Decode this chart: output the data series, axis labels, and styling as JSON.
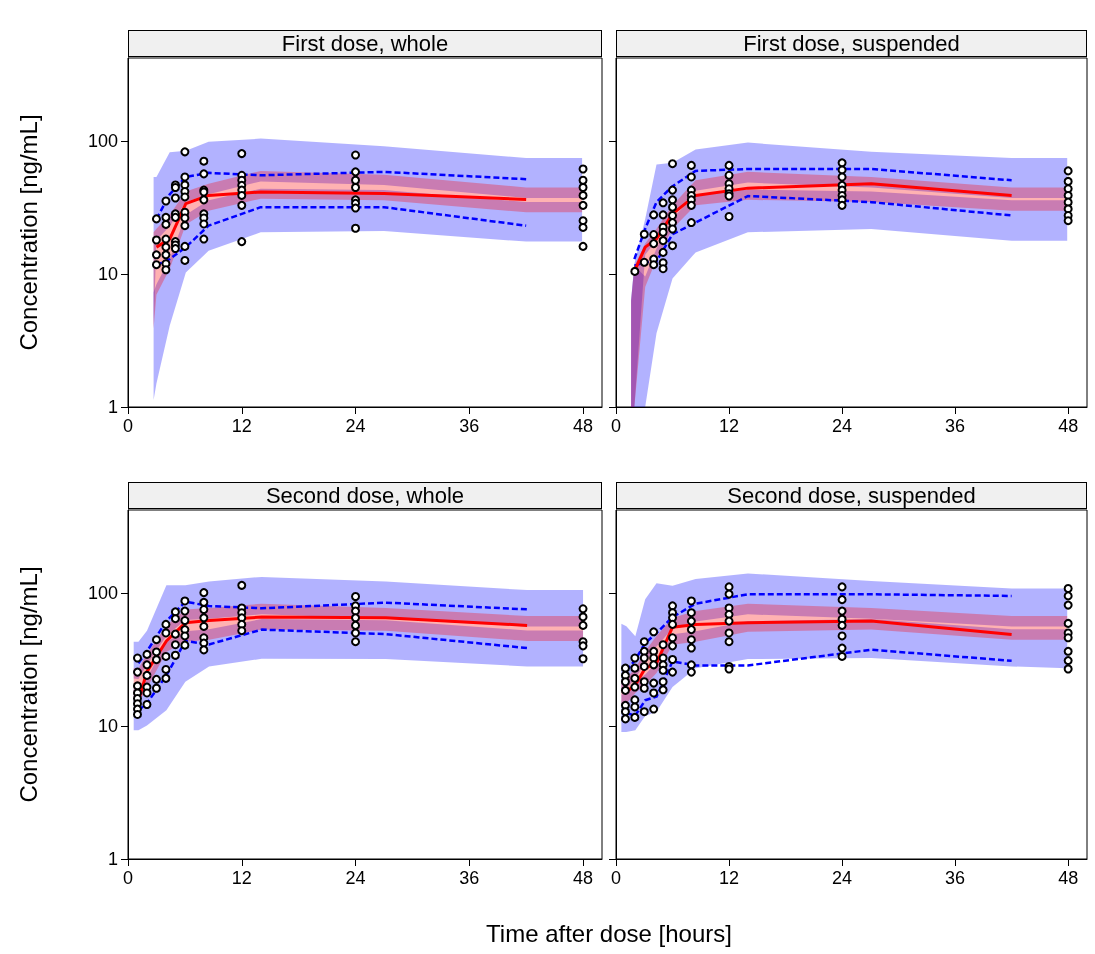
{
  "chart_data": [
    {
      "type": "line",
      "title": "First dose, whole",
      "ylabel": "Concentration [ng/mL]",
      "xlim": [
        0,
        50
      ],
      "xticks": [
        0,
        12,
        24,
        36,
        48
      ],
      "ylim": [
        1,
        425
      ],
      "yticks": [
        1,
        10,
        100
      ],
      "log": "y",
      "grid": false,
      "series": [
        {
          "color": "#0000ff",
          "line_style": "dashed",
          "marker": "none",
          "x": [
            2.7,
            3,
            4.4,
            6.1,
            8.5,
            14,
            27,
            42,
            47.9
          ],
          "values": [
            null,
            11.7,
            13,
            16,
            23.2,
            32,
            32,
            23.2,
            null
          ],
          "lower": [
            1.13,
            1.5,
            4.1,
            10.3,
            15,
            20.7,
            21.2,
            17.6,
            17.6
          ],
          "upper": [
            7.3,
            8.4,
            13,
            28,
            36,
            44,
            43,
            35,
            35
          ]
        },
        {
          "color": "#0000ff",
          "line_style": "dashed",
          "marker": "none",
          "x": [
            2.7,
            3,
            4.4,
            6.1,
            8.5,
            14,
            27,
            42,
            47.9
          ],
          "values": [
            null,
            26,
            40,
            54,
            58,
            55.6,
            59,
            52,
            null
          ],
          "lower": [
            3.9,
            18,
            23,
            35,
            40,
            50,
            47,
            37.5,
            37.5
          ],
          "upper": [
            54,
            54,
            83,
            85,
            99.5,
            105,
            92,
            75,
            75
          ]
        },
        {
          "color": "#ff0000",
          "line_style": "solid",
          "marker": "none",
          "x": [
            2.7,
            3,
            4.4,
            6.1,
            8.5,
            14,
            27,
            42,
            47.9
          ],
          "values": [
            null,
            16,
            18.4,
            34,
            39.2,
            41.6,
            40.5,
            36.6,
            null
          ],
          "lower": [
            3.9,
            7,
            11,
            23.7,
            30,
            37,
            36,
            29.3,
            29.3
          ],
          "upper": [
            20.7,
            22,
            28,
            42,
            48,
            60,
            56,
            45,
            45
          ]
        },
        {
          "type": "scatter",
          "color": "#000000",
          "marker": "circle",
          "x": [
            3,
            3,
            3,
            3,
            4,
            4,
            4,
            4,
            4,
            4,
            4,
            4,
            5,
            5,
            5,
            5,
            5,
            5,
            5,
            5,
            6,
            6,
            6,
            6,
            6,
            6,
            6,
            6,
            6,
            6,
            8,
            8,
            8,
            8,
            8,
            8,
            8,
            8,
            8,
            12,
            12,
            12,
            12,
            12,
            12,
            12,
            12,
            24,
            24,
            24,
            24,
            24,
            24,
            24,
            24,
            48,
            48,
            48,
            48,
            48,
            48,
            48,
            48
          ],
          "values": [
            26.1,
            18.1,
            14,
            11.8,
            35.6,
            26.8,
            23.7,
            18.4,
            16,
            14,
            12,
            10.8,
            47,
            45,
            37.5,
            28.5,
            26.8,
            17.6,
            16.6,
            15.6,
            83.5,
            54,
            47,
            42,
            38.2,
            29.3,
            26.5,
            23.2,
            16.2,
            12.7,
            71,
            57,
            43,
            41.6,
            36.3,
            28.5,
            26.5,
            23.9,
            18.4,
            81,
            55.6,
            51,
            46.7,
            43,
            39.2,
            33,
            17.6,
            79,
            59,
            51,
            45,
            36.3,
            34.2,
            31.5,
            22.2,
            62,
            51,
            45,
            39.2,
            33,
            25.3,
            22.5,
            16.2
          ]
        }
      ]
    },
    {
      "type": "line",
      "title": "First dose, suspended",
      "xlim": [
        0,
        50
      ],
      "xticks": [
        0,
        12,
        24,
        36,
        48
      ],
      "ylim": [
        1,
        425
      ],
      "yticks": [
        1,
        10,
        100
      ],
      "log": "y",
      "grid": false,
      "tick_labels": "x",
      "series": [
        {
          "color": "#0000ff",
          "line_style": "dashed",
          "marker": "none",
          "x": [
            1.6,
            1.95,
            3.1,
            4.3,
            6,
            8.45,
            14,
            27.1,
            42,
            47.9
          ],
          "values": [
            null,
            11.6,
            12.3,
            12.5,
            20,
            24.5,
            38.8,
            34.9,
            27.7,
            null
          ],
          "lower": [
            1,
            1,
            1,
            3.6,
            9.3,
            14.6,
            20.7,
            21.9,
            17.9,
            17.9
          ],
          "upper": [
            6.3,
            11.6,
            9.6,
            15.6,
            26.4,
            40,
            43.5,
            42,
            36,
            36
          ]
        },
        {
          "color": "#0000ff",
          "line_style": "dashed",
          "marker": "none",
          "x": [
            1.6,
            1.95,
            3.1,
            4.3,
            6,
            8.45,
            14,
            27.1,
            42,
            47.9
          ],
          "values": [
            null,
            13,
            22,
            35,
            46,
            60,
            62,
            62,
            51,
            null
          ],
          "lower": [
            1,
            1,
            14,
            18,
            27.5,
            42.5,
            49,
            45,
            37.5,
            37.5
          ],
          "upper": [
            6.4,
            12,
            26,
            67,
            69,
            87,
            98,
            83.5,
            75,
            75
          ]
        },
        {
          "color": "#ff0000",
          "line_style": "solid",
          "marker": "none",
          "x": [
            1.6,
            1.95,
            3.1,
            4.3,
            6,
            8.45,
            14,
            27.1,
            42,
            47.9
          ],
          "values": [
            null,
            10.5,
            16,
            18.4,
            28.5,
            39.2,
            44.5,
            48,
            39.2,
            null
          ],
          "lower": [
            1,
            1,
            8,
            13,
            22,
            33,
            36.3,
            35,
            30,
            30
          ],
          "upper": [
            6.3,
            11.6,
            17,
            22,
            33,
            51,
            59,
            54,
            45,
            45
          ]
        },
        {
          "type": "scatter",
          "color": "#000000",
          "marker": "circle",
          "x": [
            2,
            3,
            3,
            4,
            4,
            4,
            4,
            4,
            5,
            5,
            5,
            5,
            5,
            5,
            5,
            5,
            6,
            6,
            6,
            6,
            6,
            6,
            6,
            6,
            8,
            8,
            8,
            8,
            8,
            8,
            8,
            12,
            12,
            12,
            12,
            12,
            12,
            12,
            24,
            24,
            24,
            24,
            24,
            24,
            24,
            24,
            48,
            48,
            48,
            48,
            48,
            48,
            48,
            48
          ],
          "values": [
            10.5,
            20,
            12.3,
            28,
            19.9,
            17,
            13,
            11.8,
            34.5,
            28,
            22.6,
            20.7,
            17.9,
            14.6,
            12.2,
            11,
            68,
            43,
            36.3,
            32,
            27.7,
            24.5,
            21.9,
            16.4,
            66,
            54,
            43,
            39.2,
            36.3,
            33,
            24.5,
            66,
            55.6,
            48,
            44,
            40.4,
            38.8,
            27.2,
            69,
            61,
            54,
            46.7,
            43,
            39.2,
            36.3,
            33,
            60,
            50,
            44,
            39.2,
            34.9,
            31,
            27.7,
            25.3
          ]
        }
      ]
    },
    {
      "type": "line",
      "title": "Second dose, whole",
      "ylabel": "Concentration [ng/mL]",
      "xlabel": "Time after dose [hours]",
      "xlim": [
        0,
        50
      ],
      "xticks": [
        0,
        12,
        24,
        36,
        48
      ],
      "ylim": [
        1,
        420
      ],
      "yticks": [
        1,
        10,
        100
      ],
      "log": "y",
      "grid": false,
      "series": [
        {
          "color": "#0000ff",
          "line_style": "dashed",
          "marker": "none",
          "x": [
            0.6,
            1.1,
            2,
            4.05,
            6.05,
            8.55,
            14.1,
            27.2,
            42.1,
            48
          ],
          "values": [
            null,
            13.1,
            14.8,
            24,
            43.5,
            41,
            53,
            49,
            38.5,
            null
          ],
          "lower": [
            9.3,
            9.3,
            10.1,
            13.1,
            21.5,
            28,
            32,
            31.8,
            28,
            28
          ],
          "upper": [
            19.3,
            18,
            23,
            43,
            51.6,
            53.4,
            63.6,
            62.4,
            52.2,
            52.2
          ]
        },
        {
          "color": "#0000ff",
          "line_style": "dashed",
          "marker": "none",
          "x": [
            0.6,
            1.1,
            2,
            4.05,
            6.05,
            8.55,
            14.1,
            27.2,
            42.1,
            48
          ],
          "values": [
            null,
            29.6,
            36.4,
            61.4,
            86,
            79.7,
            76.6,
            84.5,
            75.2,
            null
          ],
          "lower": [
            22.7,
            22.5,
            28.8,
            47.5,
            62.5,
            64,
            69,
            64,
            56,
            56
          ],
          "upper": [
            43,
            43,
            52,
            114,
            114,
            122,
            132,
            122,
            105,
            105
          ]
        },
        {
          "color": "#ff0000",
          "line_style": "solid",
          "marker": "none",
          "x": [
            0.6,
            1.1,
            2,
            4.05,
            6.05,
            8.55,
            14.1,
            27.2,
            42.1,
            48
          ],
          "values": [
            null,
            15.5,
            25.6,
            43.5,
            59.6,
            62,
            65.8,
            65,
            57,
            null
          ],
          "lower": [
            16.1,
            15,
            19.2,
            36,
            43,
            44.5,
            53,
            52,
            43.5,
            43.5
          ],
          "upper": [
            27.2,
            27,
            34.6,
            57,
            75,
            77,
            83,
            77,
            67,
            67
          ]
        },
        {
          "type": "scatter",
          "color": "#000000",
          "marker": "circle",
          "x": [
            1,
            1,
            1,
            1,
            1,
            1,
            1,
            1,
            2,
            2,
            2,
            2,
            2,
            2,
            3,
            3,
            3,
            3,
            3,
            4,
            4,
            4,
            4,
            4,
            5,
            5,
            5,
            5,
            5,
            6,
            6,
            6,
            6,
            6,
            6,
            8,
            8,
            8,
            8,
            8,
            8,
            8,
            8,
            12,
            12,
            12,
            12,
            12,
            12,
            24,
            24,
            24,
            24,
            24,
            24,
            24,
            48,
            48,
            48,
            48,
            48,
            48
          ],
          "values": [
            32.4,
            25.4,
            20,
            17.7,
            16.1,
            14.7,
            13.4,
            12.2,
            34.5,
            28.8,
            24,
            19.6,
            17.7,
            14.5,
            44.5,
            36,
            31.5,
            22.4,
            19.2,
            58,
            50,
            33.3,
            26.6,
            22.8,
            72,
            64,
            49,
            40.8,
            34,
            87,
            73,
            62,
            53,
            47.5,
            40.5,
            100.5,
            85,
            75,
            65,
            56,
            46,
            42,
            37.3,
            114,
            77,
            71,
            65,
            58,
            52,
            94,
            80,
            73,
            65,
            57,
            50,
            43,
            76,
            66,
            57,
            43,
            40,
            32
          ]
        }
      ]
    },
    {
      "type": "line",
      "title": "Second dose, suspended",
      "xlim": [
        0,
        50
      ],
      "xticks": [
        0,
        12,
        24,
        36,
        48
      ],
      "ylim": [
        1,
        420
      ],
      "yticks": [
        1,
        10,
        100
      ],
      "log": "y",
      "grid": false,
      "tick_labels": "x",
      "series": [
        {
          "color": "#0000ff",
          "line_style": "dashed",
          "marker": "none",
          "x": [
            0.57,
            1.1,
            2.05,
            3.1,
            4.3,
            6,
            8.45,
            14,
            27.1,
            42,
            47.9
          ],
          "values": [
            null,
            12.5,
            12,
            15.6,
            16.6,
            30.5,
            28.5,
            28.5,
            37.4,
            30.9,
            null
          ],
          "lower": [
            9,
            9,
            9.3,
            11.9,
            12.8,
            19.6,
            27.2,
            31.8,
            32.4,
            28,
            27.2
          ],
          "upper": [
            17.2,
            17.6,
            21.2,
            24.4,
            30,
            49,
            51.6,
            61.2,
            63.6,
            53.4,
            53.4
          ]
        },
        {
          "color": "#0000ff",
          "line_style": "dashed",
          "marker": "none",
          "x": [
            0.57,
            1.1,
            2.05,
            3.1,
            4.3,
            6,
            8.45,
            14,
            27.1,
            42,
            47.9
          ],
          "values": [
            null,
            26,
            31.4,
            42,
            50,
            65.8,
            83,
            97.7,
            97.7,
            94.9,
            null
          ],
          "lower": [
            18.5,
            19,
            22.7,
            30.3,
            39.6,
            54,
            61,
            69,
            64,
            56,
            56
          ],
          "upper": [
            58.6,
            56.2,
            47.2,
            89.6,
            118,
            113,
            127,
            140,
            123,
            108,
            108
          ]
        },
        {
          "color": "#ff0000",
          "line_style": "solid",
          "marker": "none",
          "x": [
            0.57,
            1.1,
            2.05,
            3.1,
            4.3,
            6,
            8.45,
            14,
            27.1,
            42,
            47.9
          ],
          "values": [
            null,
            18.1,
            20.3,
            27.2,
            29.6,
            55.3,
            58,
            59.6,
            61.4,
            48.7,
            null
          ],
          "lower": [
            14.3,
            14.7,
            17.7,
            20.3,
            25,
            40.8,
            43,
            51,
            53,
            44.5,
            44.5
          ],
          "upper": [
            22.2,
            22.8,
            27.2,
            36.4,
            47.5,
            65,
            73,
            83,
            77,
            67,
            67
          ]
        },
        {
          "type": "scatter",
          "color": "#000000",
          "marker": "circle",
          "x": [
            1,
            1,
            1,
            1,
            1,
            1,
            1,
            2,
            2,
            2,
            2,
            2,
            2,
            2,
            3,
            3,
            3,
            3,
            3,
            3,
            3,
            4,
            4,
            4,
            4,
            4,
            4,
            4,
            5,
            5,
            5,
            5,
            5,
            5,
            6,
            6,
            6,
            6,
            6,
            6,
            6,
            6,
            8,
            8,
            8,
            8,
            8,
            8,
            8,
            8,
            12,
            12,
            12,
            12,
            12,
            12,
            12,
            12,
            12,
            24,
            24,
            24,
            24,
            24,
            24,
            24,
            24,
            48,
            48,
            48,
            48,
            48,
            48,
            48,
            48,
            48
          ],
          "values": [
            27.2,
            24,
            21.5,
            18.5,
            14.3,
            12.8,
            11.3,
            32.4,
            27.2,
            22.8,
            19.6,
            15.7,
            13.9,
            11.6,
            43,
            36.4,
            32.4,
            28,
            21.5,
            19.2,
            12.8,
            51,
            36.4,
            32.4,
            28.8,
            21,
            17.7,
            13.4,
            40.8,
            32.4,
            28.8,
            26.2,
            21.5,
            18.7,
            80,
            71,
            65,
            58,
            46,
            40,
            31.6,
            25.4,
            87,
            71,
            61.4,
            53,
            44.5,
            38.5,
            28.8,
            25.4,
            111,
            98,
            77,
            69,
            61.4,
            50,
            43,
            28,
            26.8,
            111,
            89,
            73,
            63.5,
            57,
            47.5,
            38.5,
            33.3,
            108,
            95,
            81,
            59,
            50,
            46,
            36.4,
            31,
            26.8
          ]
        }
      ]
    }
  ]
}
